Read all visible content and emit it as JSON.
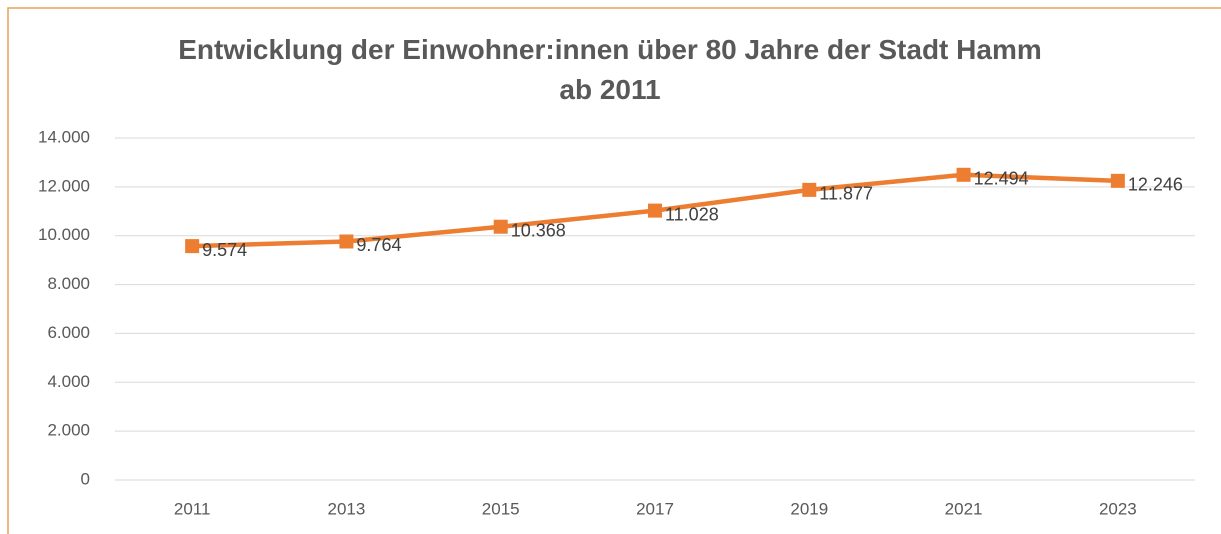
{
  "chart_data": {
    "type": "line",
    "title": "Entwicklung der Einwohner:innen über 80 Jahre der Stadt Hamm ab 2011",
    "categories": [
      "2011",
      "2013",
      "2015",
      "2017",
      "2019",
      "2021",
      "2023"
    ],
    "series": [
      {
        "name": "Einwohner:innen über 80 Jahre",
        "color": "#ed7d31",
        "values": [
          9574,
          9764,
          10368,
          11028,
          11877,
          12494,
          12246
        ],
        "value_labels": [
          "9.574",
          "9.764",
          "10.368",
          "11.028",
          "11.877",
          "12.494",
          "12.246"
        ]
      }
    ],
    "ylim": [
      0,
      14000
    ],
    "yticks": [
      0,
      {
        "value": 2000,
        "label": "2.000"
      },
      {
        "value": 4000,
        "label": "4.000"
      },
      {
        "value": 6000,
        "label": "6.000"
      },
      {
        "value": 8000,
        "label": "8.000"
      },
      {
        "value": 10000,
        "label": "10.000"
      },
      {
        "value": 12000,
        "label": "12.000"
      },
      {
        "value": 14000,
        "label": "14.000"
      }
    ],
    "grid": true,
    "legend": false
  }
}
